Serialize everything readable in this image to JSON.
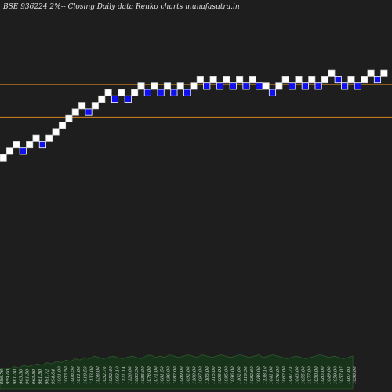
{
  "header": {
    "title": "BSE 936224  2%-- Closing Daily data  Renko  charts munafasutra.in"
  },
  "colors": {
    "background": "#1e1e1e",
    "up_brick": "#ffffff",
    "down_brick": "#1010ee",
    "reference_line": "#d4841e",
    "volume_fill": "#17331a",
    "volume_stroke": "#2d5a2d",
    "label": "#d8d8d8"
  },
  "chart_data": {
    "type": "renko",
    "title": "BSE 936224  2%-- Closing Daily data  Renko  charts munafasutra.in",
    "brick_size_pct": 2,
    "bricks": [
      {
        "dir": "up",
        "level": 0
      },
      {
        "dir": "up",
        "level": 1
      },
      {
        "dir": "up",
        "level": 2
      },
      {
        "dir": "down",
        "level": 1
      },
      {
        "dir": "up",
        "level": 2
      },
      {
        "dir": "up",
        "level": 3
      },
      {
        "dir": "down",
        "level": 2
      },
      {
        "dir": "up",
        "level": 3
      },
      {
        "dir": "up",
        "level": 4
      },
      {
        "dir": "up",
        "level": 5
      },
      {
        "dir": "up",
        "level": 6
      },
      {
        "dir": "up",
        "level": 7
      },
      {
        "dir": "up",
        "level": 8
      },
      {
        "dir": "down",
        "level": 7
      },
      {
        "dir": "up",
        "level": 8
      },
      {
        "dir": "up",
        "level": 9
      },
      {
        "dir": "up",
        "level": 10
      },
      {
        "dir": "down",
        "level": 9
      },
      {
        "dir": "up",
        "level": 10
      },
      {
        "dir": "down",
        "level": 9
      },
      {
        "dir": "up",
        "level": 10
      },
      {
        "dir": "up",
        "level": 11
      },
      {
        "dir": "down",
        "level": 10
      },
      {
        "dir": "up",
        "level": 11
      },
      {
        "dir": "down",
        "level": 10
      },
      {
        "dir": "up",
        "level": 11
      },
      {
        "dir": "down",
        "level": 10
      },
      {
        "dir": "up",
        "level": 11
      },
      {
        "dir": "down",
        "level": 10
      },
      {
        "dir": "up",
        "level": 11
      },
      {
        "dir": "up",
        "level": 12
      },
      {
        "dir": "down",
        "level": 11
      },
      {
        "dir": "up",
        "level": 12
      },
      {
        "dir": "down",
        "level": 11
      },
      {
        "dir": "up",
        "level": 12
      },
      {
        "dir": "down",
        "level": 11
      },
      {
        "dir": "up",
        "level": 12
      },
      {
        "dir": "down",
        "level": 11
      },
      {
        "dir": "up",
        "level": 12
      },
      {
        "dir": "down",
        "level": 11
      },
      {
        "dir": "up",
        "level": 11
      },
      {
        "dir": "down",
        "level": 10
      },
      {
        "dir": "up",
        "level": 11
      },
      {
        "dir": "up",
        "level": 12
      },
      {
        "dir": "down",
        "level": 11
      },
      {
        "dir": "up",
        "level": 12
      },
      {
        "dir": "down",
        "level": 11
      },
      {
        "dir": "up",
        "level": 12
      },
      {
        "dir": "down",
        "level": 11
      },
      {
        "dir": "up",
        "level": 12
      },
      {
        "dir": "up",
        "level": 13
      },
      {
        "dir": "down",
        "level": 12
      },
      {
        "dir": "down",
        "level": 11
      },
      {
        "dir": "up",
        "level": 12
      },
      {
        "dir": "down",
        "level": 11
      },
      {
        "dir": "up",
        "level": 12
      },
      {
        "dir": "up",
        "level": 13
      },
      {
        "dir": "down",
        "level": 12
      },
      {
        "dir": "up",
        "level": 13
      }
    ],
    "reference_lines_level": [
      6.3,
      11.3
    ],
    "x_labels": [
      "956.76",
      "959.00",
      "961.50",
      "963.50",
      "961.50",
      "963.50",
      "961.50",
      "981.72",
      "994.84",
      "1001.00",
      "1003.50",
      "1008.50",
      "1011.00",
      "1018.59",
      "1133.00",
      "1058.00",
      "1052.76",
      "1052.40",
      "1063.10",
      "1121.14",
      "1126.00",
      "1083.50",
      "1085.00",
      "1076.00",
      "1071.00",
      "1081.50",
      "1086.00",
      "1082.00",
      "1089.00",
      "1092.00",
      "1100.00",
      "1097.00",
      "1105.00",
      "1115.00",
      "1095.92",
      "1085.00",
      "1096.00",
      "1102.00",
      "1119.50",
      "1082.60",
      "1088.00",
      "1138.10",
      "1041.00",
      "1076.00",
      "1062.00",
      "1047.75",
      "1043.00",
      "1055.00",
      "1077.00",
      "1050.00",
      "1083.00",
      "1049.00",
      "1059.00",
      "1057.07",
      "1067.83",
      "1098.00"
    ],
    "volume": [
      3,
      4,
      3,
      5,
      4,
      6,
      5,
      6,
      7,
      6,
      8,
      7,
      9,
      8,
      10,
      9,
      11,
      10,
      12,
      11,
      13,
      12,
      11,
      12,
      13,
      12,
      11,
      12,
      13,
      12,
      11,
      13,
      14,
      12,
      13,
      12,
      14,
      13,
      12,
      13,
      14,
      13,
      12,
      14,
      13,
      12,
      13,
      14,
      13,
      12,
      13,
      14,
      13,
      12,
      13,
      14,
      12,
      13,
      14,
      13,
      12,
      11,
      12,
      13,
      12,
      11,
      12,
      13,
      14,
      13,
      12,
      13,
      12,
      11,
      12,
      13
    ]
  }
}
